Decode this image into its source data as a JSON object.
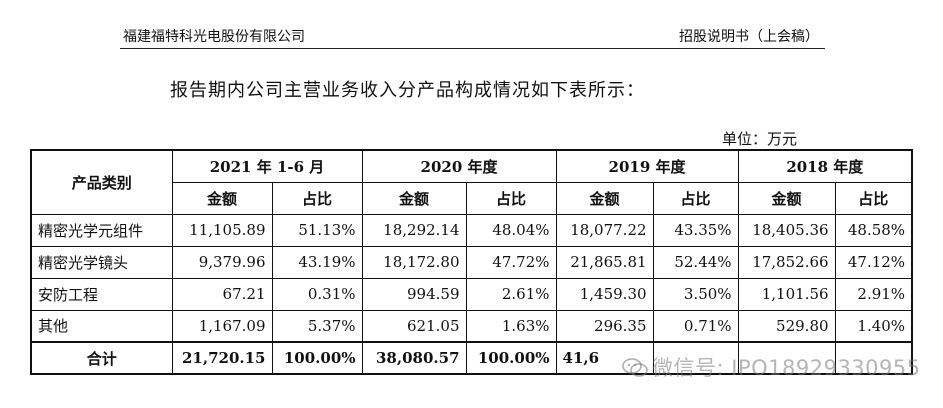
{
  "header": {
    "company": "福建福特科光电股份有限公司",
    "doc": "招股说明书（上会稿）"
  },
  "intro": "报告期内公司主营业务收入分产品构成情况如下表所示：",
  "unit": "单位：万元",
  "table": {
    "category_header": "产品类别",
    "periods": [
      "2021 年 1-6 月",
      "2020 年度",
      "2019 年度",
      "2018 年度"
    ],
    "amount_label": "金额",
    "ratio_label": "占比",
    "rows": [
      {
        "name": "精密光学元组件",
        "cells": [
          "11,105.89",
          "51.13%",
          "18,292.14",
          "48.04%",
          "18,077.22",
          "43.35%",
          "18,405.36",
          "48.58%"
        ]
      },
      {
        "name": "精密光学镜头",
        "cells": [
          "9,379.96",
          "43.19%",
          "18,172.80",
          "47.72%",
          "21,865.81",
          "52.44%",
          "17,852.66",
          "47.12%"
        ]
      },
      {
        "name": "安防工程",
        "cells": [
          "67.21",
          "0.31%",
          "994.59",
          "2.61%",
          "1,459.30",
          "3.50%",
          "1,101.56",
          "2.91%"
        ]
      },
      {
        "name": "其他",
        "cells": [
          "1,167.09",
          "5.37%",
          "621.05",
          "1.63%",
          "296.35",
          "0.71%",
          "529.80",
          "1.40%"
        ]
      }
    ],
    "total": {
      "name": "合计",
      "cells": [
        "21,720.15",
        "100.00%",
        "38,080.57",
        "100.00%",
        "41,6",
        "",
        "",
        ""
      ]
    }
  },
  "watermark": "微信号: IPO18929330955"
}
